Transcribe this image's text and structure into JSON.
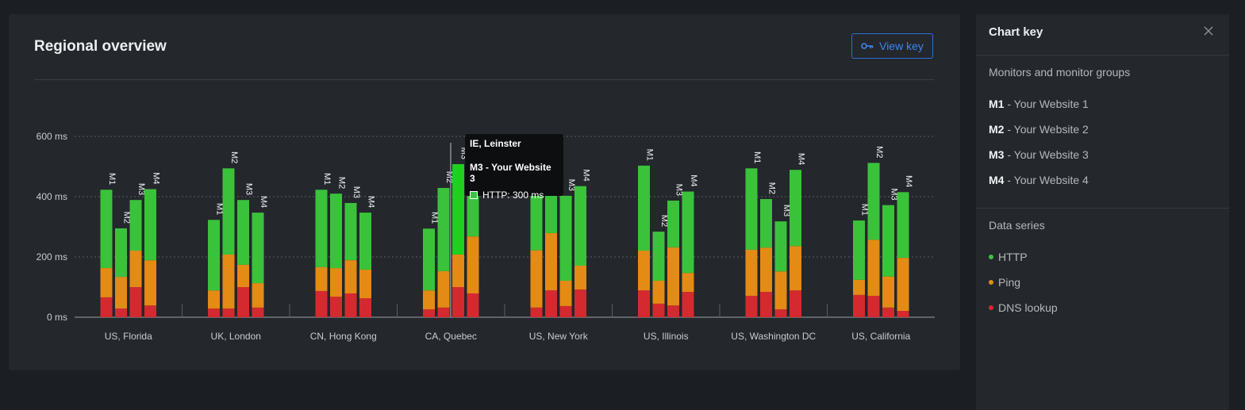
{
  "panel": {
    "title": "Regional overview",
    "view_key_label": "View key"
  },
  "chart_data": {
    "type": "bar",
    "stacked": true,
    "title": "",
    "y_ticks": [
      "0 ms",
      "200 ms",
      "400 ms",
      "600 ms"
    ],
    "ylim": [
      0,
      600
    ],
    "grid": true,
    "categories": [
      "US, Florida",
      "UK, London",
      "CN, Hong Kong",
      "CA, Quebec",
      "US, New York",
      "US, Illinois",
      "US, Washington DC",
      "US, California"
    ],
    "monitors": [
      "M1",
      "M2",
      "M3",
      "M4"
    ],
    "series_colors": {
      "dns": "#d42a2f",
      "ping": "#e38b14",
      "http": "#3bc23b"
    },
    "groups": [
      {
        "region": "US, Florida",
        "bars": [
          {
            "monitor": "M1",
            "dns": 66,
            "ping": 97,
            "http": 260
          },
          {
            "monitor": "M2",
            "dns": 29,
            "ping": 105,
            "http": 161
          },
          {
            "monitor": "M3",
            "dns": 100,
            "ping": 121,
            "http": 168
          },
          {
            "monitor": "M4",
            "dns": 39,
            "ping": 150,
            "http": 236
          }
        ]
      },
      {
        "region": "UK, London",
        "bars": [
          {
            "monitor": "M1",
            "dns": 29,
            "ping": 60,
            "http": 234
          },
          {
            "monitor": "M2",
            "dns": 29,
            "ping": 179,
            "http": 286
          },
          {
            "monitor": "M3",
            "dns": 100,
            "ping": 74,
            "http": 215
          },
          {
            "monitor": "M4",
            "dns": 32,
            "ping": 81,
            "http": 234
          }
        ]
      },
      {
        "region": "CN, Hong Kong",
        "bars": [
          {
            "monitor": "M1",
            "dns": 87,
            "ping": 79,
            "http": 257
          },
          {
            "monitor": "M2",
            "dns": 68,
            "ping": 95,
            "http": 247
          },
          {
            "monitor": "M3",
            "dns": 79,
            "ping": 110,
            "http": 190
          },
          {
            "monitor": "M4",
            "dns": 63,
            "ping": 95,
            "http": 189
          }
        ]
      },
      {
        "region": "CA, Quebec",
        "bars": [
          {
            "monitor": "M1",
            "dns": 26,
            "ping": 63,
            "http": 205
          },
          {
            "monitor": "M2",
            "dns": 32,
            "ping": 121,
            "http": 276
          },
          {
            "monitor": "M3",
            "dns": 100,
            "ping": 108,
            "http": 300
          },
          {
            "monitor": "M4",
            "dns": 79,
            "ping": 189,
            "http": 247
          }
        ]
      },
      {
        "region": "US, New York",
        "bars": [
          {
            "monitor": "M1",
            "dns": 32,
            "ping": 190,
            "http": 292
          },
          {
            "monitor": "M2",
            "dns": 89,
            "ping": 190,
            "http": 237
          },
          {
            "monitor": "M3",
            "dns": 37,
            "ping": 84,
            "http": 282
          },
          {
            "monitor": "M4",
            "dns": 92,
            "ping": 79,
            "http": 264
          }
        ]
      },
      {
        "region": "US, Illinois",
        "bars": [
          {
            "monitor": "M1",
            "dns": 89,
            "ping": 132,
            "http": 282
          },
          {
            "monitor": "M2",
            "dns": 45,
            "ping": 76,
            "http": 163
          },
          {
            "monitor": "M3",
            "dns": 39,
            "ping": 193,
            "http": 155
          },
          {
            "monitor": "M4",
            "dns": 84,
            "ping": 63,
            "http": 270
          }
        ]
      },
      {
        "region": "US, Washington DC",
        "bars": [
          {
            "monitor": "M1",
            "dns": 71,
            "ping": 153,
            "http": 270
          },
          {
            "monitor": "M2",
            "dns": 84,
            "ping": 147,
            "http": 161
          },
          {
            "monitor": "M3",
            "dns": 26,
            "ping": 126,
            "http": 166
          },
          {
            "monitor": "M4",
            "dns": 89,
            "ping": 147,
            "http": 253
          }
        ]
      },
      {
        "region": "US, California",
        "bars": [
          {
            "monitor": "M1",
            "dns": 74,
            "ping": 50,
            "http": 197
          },
          {
            "monitor": "M2",
            "dns": 71,
            "ping": 186,
            "http": 255
          },
          {
            "monitor": "M3",
            "dns": 32,
            "ping": 103,
            "http": 237
          },
          {
            "monitor": "M4",
            "dns": 21,
            "ping": 176,
            "http": 218
          }
        ]
      }
    ]
  },
  "tooltip": {
    "region": "IE, Leinster",
    "series": "M3 - Your Website 3",
    "value": "HTTP: 300 ms"
  },
  "sidebar": {
    "title": "Chart key",
    "monitors_heading": "Monitors and monitor groups",
    "monitors": [
      {
        "code": "M1",
        "label": " - Your Website 1"
      },
      {
        "code": "M2",
        "label": " - Your Website 2"
      },
      {
        "code": "M3",
        "label": " - Your Website 3"
      },
      {
        "code": "M4",
        "label": " - Your Website 4"
      }
    ],
    "series_heading": "Data series",
    "series": [
      {
        "label": "HTTP",
        "color": "#3bc23b"
      },
      {
        "label": "Ping",
        "color": "#e38b14"
      },
      {
        "label": "DNS lookup",
        "color": "#d42a2f"
      }
    ]
  }
}
